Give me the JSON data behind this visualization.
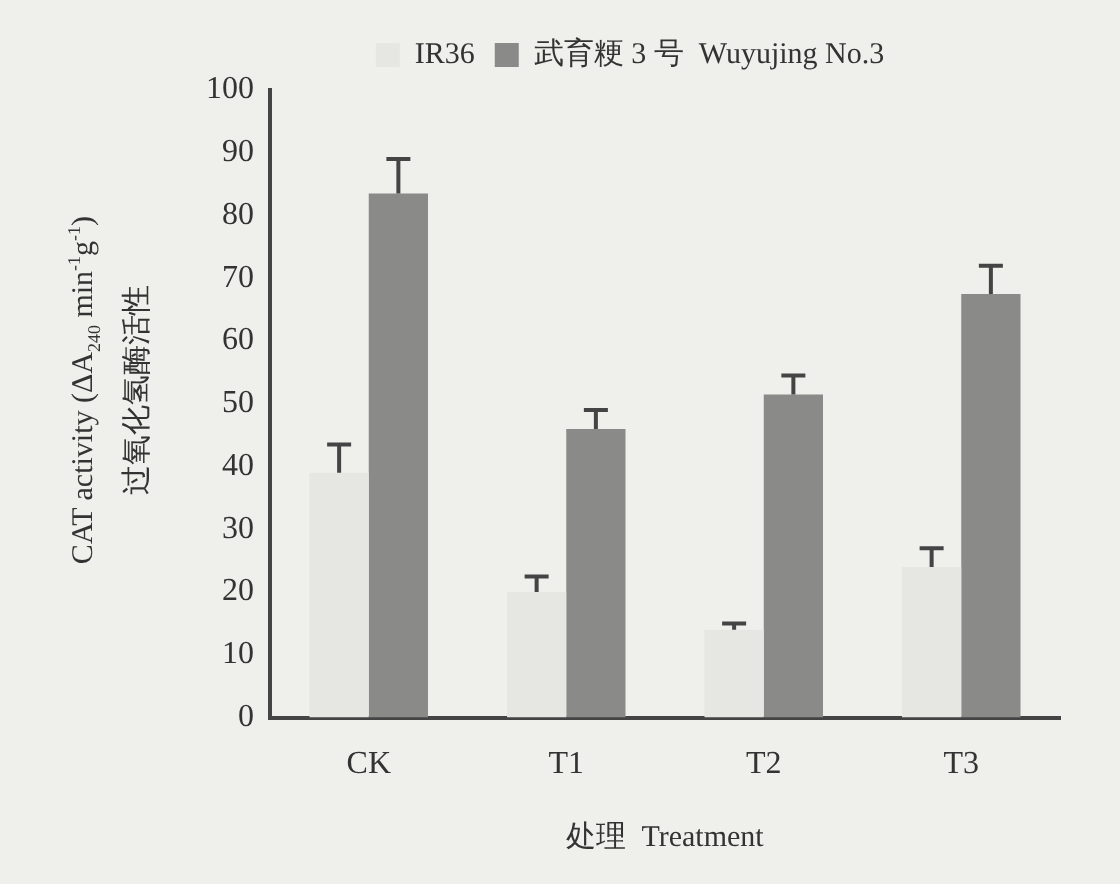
{
  "chart_data": {
    "type": "bar",
    "categories": [
      "CK",
      "T1",
      "T2",
      "T3"
    ],
    "xlabel": "处理  Treatment",
    "ylabel": "CAT activity (ΔA$_{240}$ min$^{-1}$g$^{-1}$)\n过氧化氢酶活性",
    "series": [
      {
        "name": "IR36",
        "color": "#e6e6e2",
        "values": [
          39,
          20,
          14,
          24
        ],
        "errors": [
          4.5,
          2.5,
          1,
          3
        ]
      },
      {
        "name": "武育粳 3 号  Wuyujing No.3",
        "color": "#8a8a88",
        "values": [
          83.5,
          46,
          51.5,
          67.5
        ],
        "errors": [
          5.5,
          3,
          3,
          4.5
        ]
      }
    ],
    "ylim": [
      0,
      100
    ],
    "yticks": [
      0,
      10,
      20,
      30,
      40,
      50,
      60,
      70,
      80,
      90,
      100
    ],
    "grid": false,
    "legend": "top"
  }
}
